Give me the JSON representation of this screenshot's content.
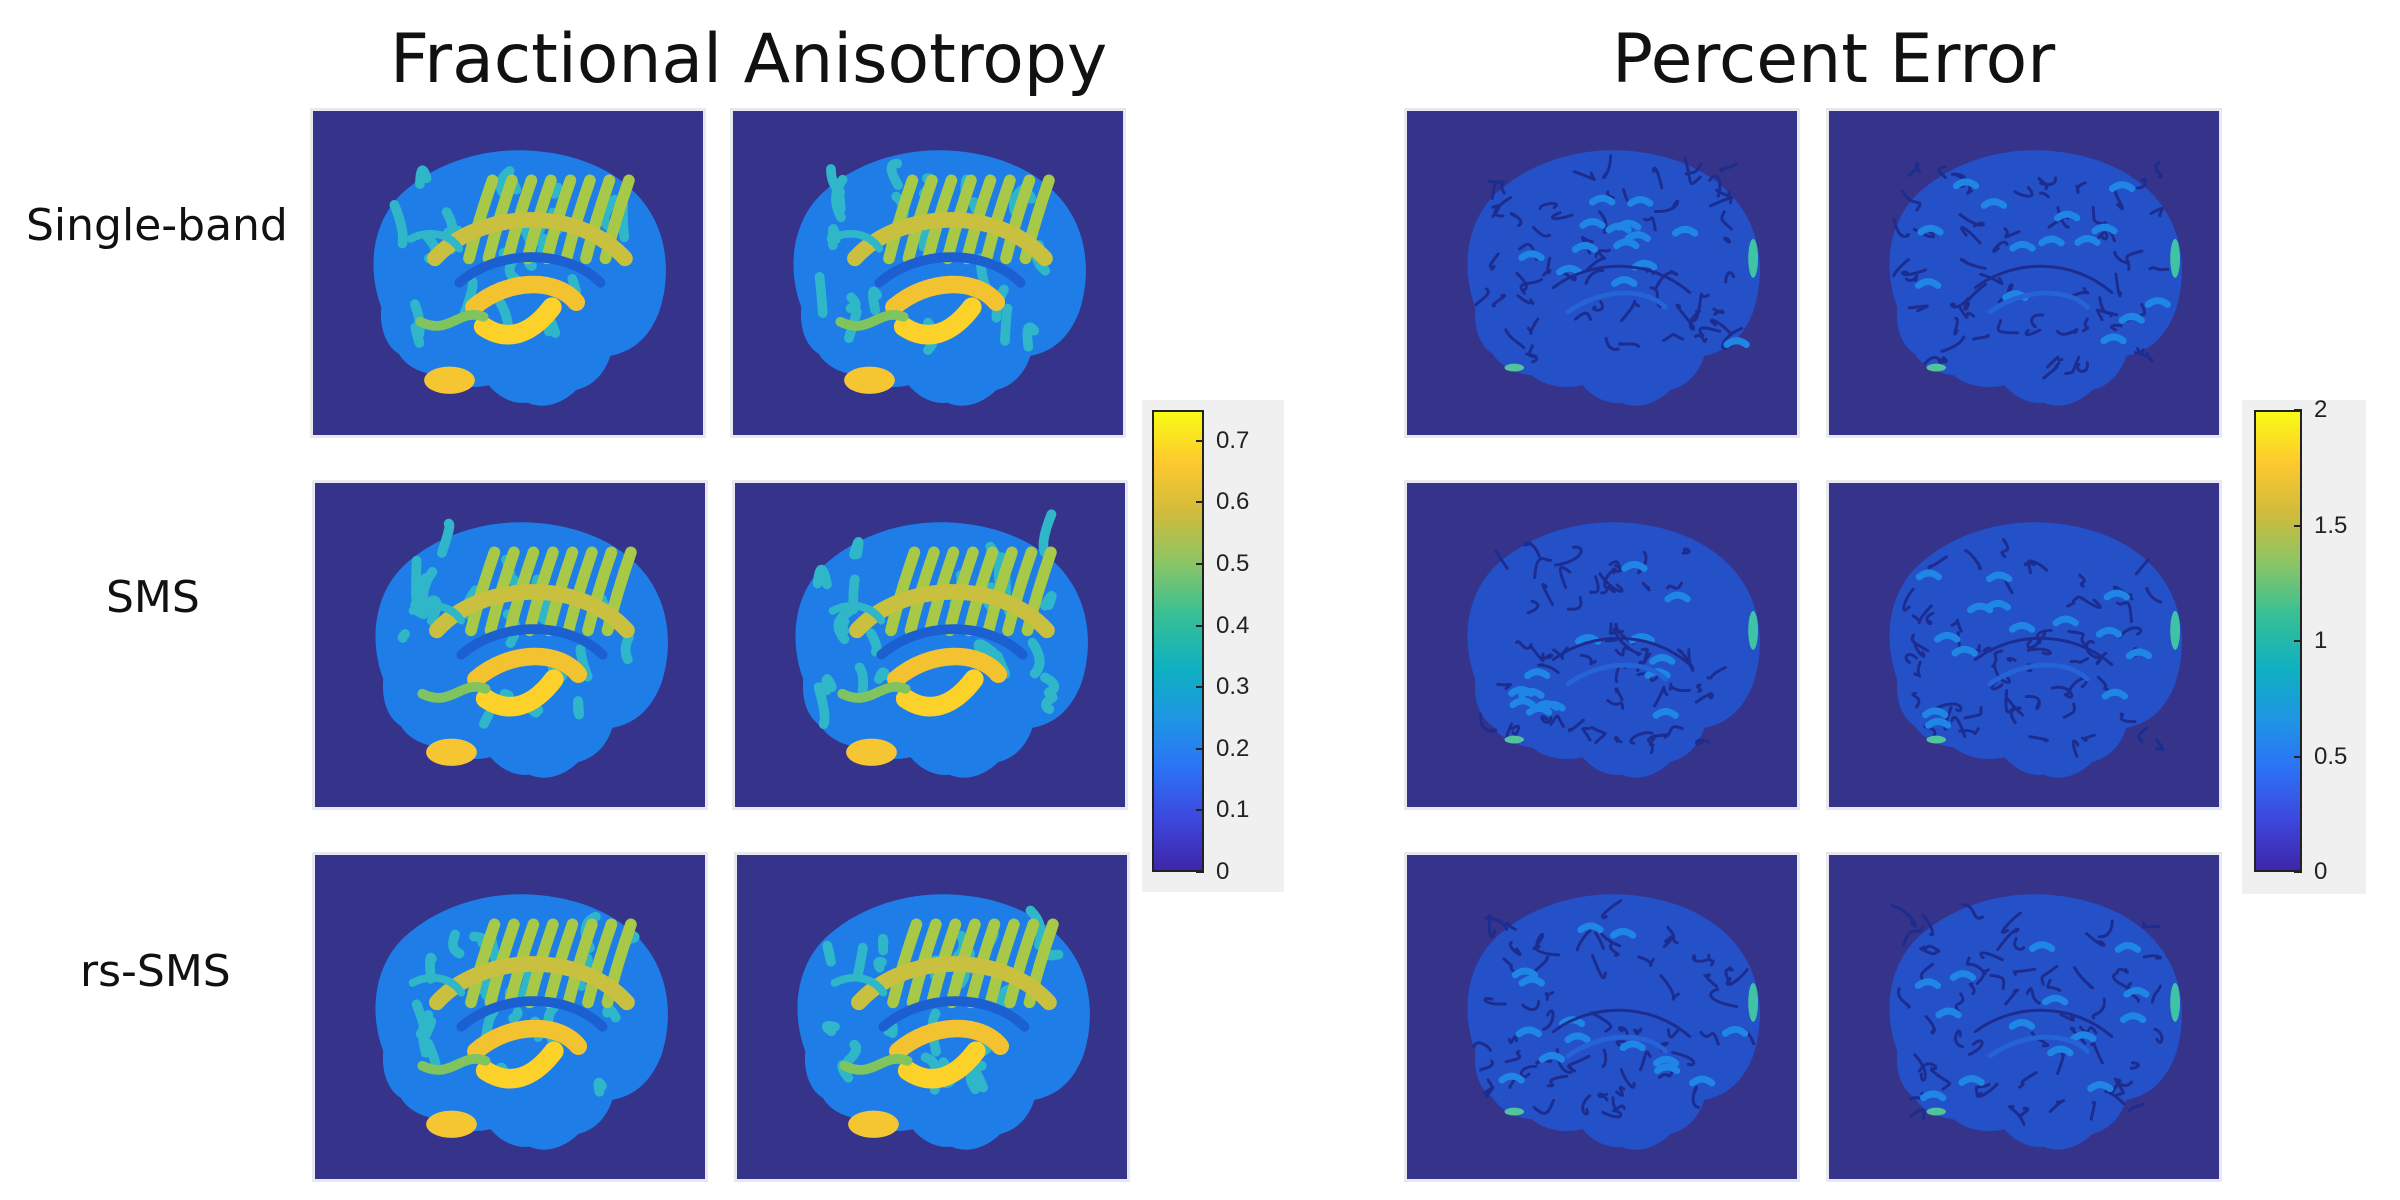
{
  "titles": {
    "left": "Fractional Anisotropy",
    "right": "Percent Error"
  },
  "row_labels": [
    "Single-band",
    "SMS",
    "rs-SMS"
  ],
  "colormap": [
    "#3e26a8",
    "#3d47dd",
    "#2c72f6",
    "#1e96e4",
    "#0fb0c1",
    "#39c095",
    "#8bc565",
    "#d1bb3c",
    "#fdc92f",
    "#f9fb14"
  ],
  "background_color": "#35338a",
  "colorbars": {
    "fa": {
      "min": 0,
      "max": 0.75,
      "ticks": [
        "0",
        "0.1",
        "0.2",
        "0.3",
        "0.4",
        "0.5",
        "0.6",
        "0.7"
      ],
      "tick_values": [
        0,
        0.1,
        0.2,
        0.3,
        0.4,
        0.5,
        0.6,
        0.7
      ]
    },
    "error": {
      "min": 0,
      "max": 2,
      "ticks": [
        "0",
        "0.5",
        "1",
        "1.5",
        "2"
      ],
      "tick_values": [
        0,
        0.5,
        1,
        1.5,
        2
      ]
    }
  },
  "panels": {
    "fa": [
      "fa-singleband-1",
      "fa-singleband-2",
      "fa-sms-1",
      "fa-sms-2",
      "fa-rssms-1",
      "fa-rssms-2"
    ],
    "error": [
      "error-singleband-1",
      "error-singleband-2",
      "error-sms-1",
      "error-sms-2",
      "error-rssms-1",
      "error-rssms-2"
    ]
  }
}
